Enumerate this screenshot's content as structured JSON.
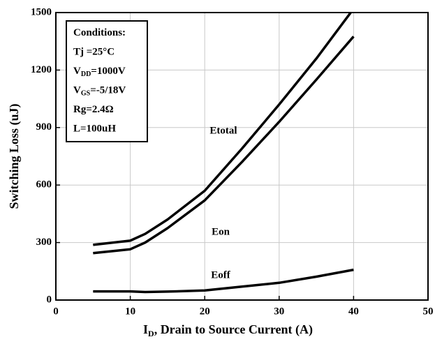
{
  "chart_data": {
    "type": "line",
    "xlabel": [
      "I",
      "D",
      ", Drain to Source Current (A)"
    ],
    "ylabel": "Switching Loss (uJ)",
    "x": [
      5,
      10,
      12,
      15,
      20,
      25,
      30,
      35,
      40
    ],
    "series": [
      {
        "name": "Etotal",
        "color": "#000000",
        "values": [
          288,
          310,
          345,
          420,
          570,
          790,
          1020,
          1260,
          1520
        ]
      },
      {
        "name": "Eon",
        "color": "#000000",
        "values": [
          245,
          265,
          300,
          375,
          520,
          720,
          930,
          1150,
          1375
        ]
      },
      {
        "name": "Eoff",
        "color": "#000000",
        "values": [
          45,
          45,
          42,
          44,
          50,
          70,
          90,
          122,
          158
        ]
      }
    ],
    "conditions": [
      [
        "Conditions:"
      ],
      [
        "Tj =25°C"
      ],
      [
        "V",
        "DD",
        "=1000V"
      ],
      [
        "V",
        "GS",
        "=-5/18V"
      ],
      [
        "Rg=2.4Ω"
      ],
      [
        "L=100uH"
      ]
    ],
    "xlim": [
      0,
      50
    ],
    "xticks": [
      0,
      10,
      20,
      30,
      40,
      50
    ],
    "ylim": [
      0,
      1500
    ],
    "yticks": [
      0,
      300,
      600,
      900,
      1200,
      1500
    ],
    "grid": true
  }
}
